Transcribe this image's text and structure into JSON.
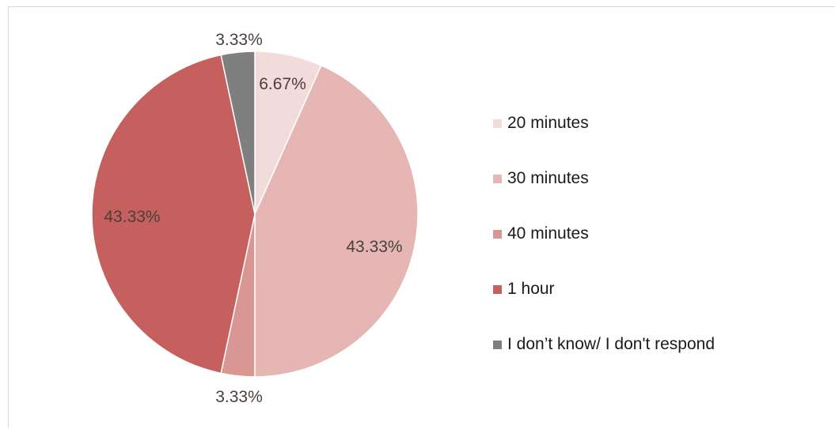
{
  "chart_data": {
    "type": "pie",
    "title": "",
    "categories": [
      "20 minutes",
      "30 minutes",
      "40 minutes",
      "1 hour",
      "I don’t know/ I don't respond"
    ],
    "values": [
      6.67,
      43.33,
      3.33,
      43.33,
      3.33
    ],
    "data_labels": [
      "6.67%",
      "43.33%",
      "3.33%",
      "43.33%",
      "3.33%"
    ],
    "colors": [
      "#f1dcdb",
      "#e5b6b4",
      "#d99693",
      "#c5605e",
      "#7f7f7f"
    ],
    "start_angle_deg": 0,
    "direction": "clockwise",
    "legend_position": "right"
  },
  "legend": {
    "items": [
      {
        "label": "20 minutes",
        "color": "#f1dcdb"
      },
      {
        "label": "30 minutes",
        "color": "#e5b6b4"
      },
      {
        "label": "40 minutes",
        "color": "#d99693"
      },
      {
        "label": "1 hour",
        "color": "#c5605e"
      },
      {
        "label": "I don’t know/ I don't respond",
        "color": "#7f7f7f"
      }
    ]
  }
}
